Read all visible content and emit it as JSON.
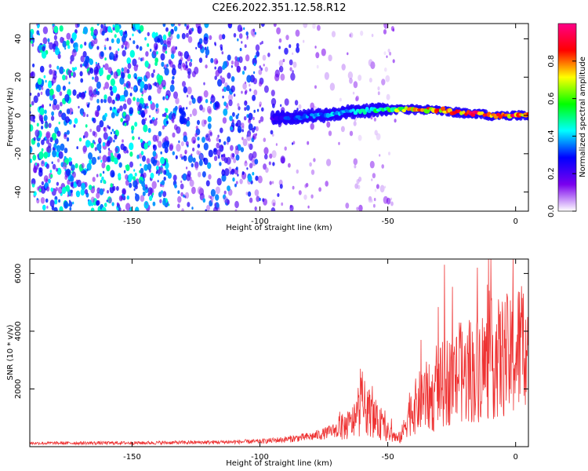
{
  "figure_title": "C2E6.2022.351.12.58.R12",
  "colors": {
    "snr_line": "#ee3333",
    "axis": "#000000",
    "background": "#ffffff"
  },
  "chart_data": [
    {
      "type": "heatmap",
      "title": "C2E6.2022.351.12.58.R12",
      "xlabel": "Height of straight line (km)",
      "ylabel": "Frequency (Hz)",
      "xlim": [
        -190,
        5
      ],
      "ylim": [
        -50,
        48
      ],
      "x_ticks": [
        -150,
        -100,
        -50,
        0
      ],
      "x_tick_labels": [
        "-150",
        "-100",
        "-50",
        "0"
      ],
      "y_ticks": [
        -40,
        -20,
        0,
        20,
        40
      ],
      "y_tick_labels": [
        "-40",
        "-20",
        "0",
        "20",
        "40"
      ],
      "colorbar": {
        "label": "Normalized spectral amplitude",
        "range": [
          0,
          1
        ],
        "ticks": [
          0.0,
          0.2,
          0.4,
          0.6,
          0.8
        ],
        "tick_labels": [
          "0.0",
          "0.2",
          "0.4",
          "0.6",
          "0.8"
        ],
        "colormap": [
          "#ffffff",
          "#7a00ee",
          "#0000ff",
          "#00ffff",
          "#00ff00",
          "#ffff00",
          "#ff0000",
          "#ff0088"
        ]
      },
      "noise_regions": [
        {
          "x_from": -190,
          "x_to": -135,
          "density": 0.95,
          "level": 0.32
        },
        {
          "x_from": -135,
          "x_to": -100,
          "density": 0.7,
          "level": 0.25
        },
        {
          "x_from": -100,
          "x_to": -85,
          "density": 0.35,
          "level": 0.18
        },
        {
          "x_from": -85,
          "x_to": -60,
          "density": 0.15,
          "level": 0.1
        },
        {
          "x_from": -57,
          "x_to": -47,
          "density": 0.25,
          "level": 0.1
        }
      ],
      "echo_trace": {
        "height_km": [
          -95,
          -90,
          -85,
          -80,
          -75,
          -70,
          -65,
          -60,
          -55,
          -50,
          -45,
          -40,
          -35,
          -30,
          -25,
          -20,
          -15,
          -10,
          -5,
          0,
          5
        ],
        "frequency_hz": [
          -1,
          -1,
          -1,
          0,
          0,
          1,
          2,
          2,
          3,
          3,
          3,
          3,
          3,
          3,
          2,
          1,
          1,
          0,
          0,
          0,
          0
        ],
        "amplitude": [
          0.25,
          0.3,
          0.33,
          0.36,
          0.38,
          0.42,
          0.45,
          0.5,
          0.5,
          0.55,
          0.7,
          0.75,
          0.8,
          0.82,
          0.85,
          0.88,
          0.9,
          0.92,
          0.9,
          0.88,
          0.86
        ]
      },
      "vertical_feature": {
        "height_km": -130,
        "frequency_hz": 0
      }
    },
    {
      "type": "line",
      "xlabel": "Height of straight line (km)",
      "ylabel": "SNR (10 * v/v)",
      "xlim": [
        -190,
        5
      ],
      "ylim": [
        0,
        6500
      ],
      "x_ticks": [
        -150,
        -100,
        -50,
        0
      ],
      "x_tick_labels": [
        "-150",
        "-100",
        "-50",
        "0"
      ],
      "y_ticks": [
        2000,
        4000,
        6000
      ],
      "y_tick_labels": [
        "2000",
        "4000",
        "6000"
      ],
      "series": [
        {
          "color": "#ee3333",
          "envelope_x": [
            -190,
            -150,
            -120,
            -100,
            -90,
            -80,
            -75,
            -70,
            -65,
            -62,
            -60,
            -58,
            -55,
            -52,
            -50,
            -48,
            -46,
            -44,
            -42,
            -40,
            -38,
            -36,
            -34,
            -32,
            -30,
            -28,
            -26,
            -24,
            -22,
            -20,
            -18,
            -16,
            -14,
            -12,
            -10,
            -8,
            -6,
            -4,
            -2,
            0,
            2,
            5
          ],
          "envelope_y": [
            120,
            130,
            150,
            180,
            250,
            350,
            450,
            600,
            750,
            1000,
            1400,
            1300,
            900,
            700,
            500,
            400,
            250,
            500,
            1200,
            1300,
            1500,
            1800,
            1700,
            1600,
            2000,
            2200,
            2300,
            2200,
            2600,
            2400,
            2700,
            2500,
            2900,
            2800,
            3000,
            3100,
            3000,
            3200,
            3000,
            3100,
            3600,
            3400
          ],
          "spikes": [
            {
              "x": -60,
              "y": 2600
            },
            {
              "x": -57,
              "y": 1800
            },
            {
              "x": -37,
              "y": 3700
            },
            {
              "x": -31,
              "y": 3500
            },
            {
              "x": -22,
              "y": 4300
            },
            {
              "x": -15,
              "y": 6200
            },
            {
              "x": -5,
              "y": 4600
            },
            {
              "x": -1,
              "y": 6500
            },
            {
              "x": 4,
              "y": 4400
            }
          ]
        }
      ]
    }
  ]
}
